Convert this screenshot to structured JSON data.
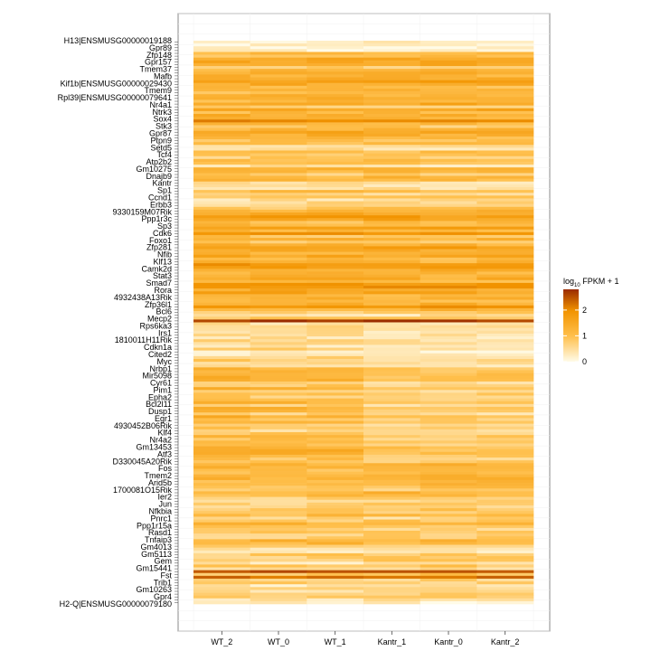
{
  "chart_data": {
    "type": "heatmap",
    "columns": [
      "WT_2",
      "WT_0",
      "WT_1",
      "Kantr_1",
      "Kantr_0",
      "Kantr_2"
    ],
    "legend": {
      "title_main": "log",
      "title_sub": "10",
      "title_rest": " FPKM + 1",
      "ticks": [
        0,
        1,
        2
      ],
      "range": [
        0,
        2.8
      ],
      "colors": [
        "#fffbe8",
        "#ffc04d",
        "#f29400",
        "#9a2a00"
      ]
    },
    "row_labels": [
      "H13|ENSMUSG00000019188",
      "Gpr89",
      "Zfp148",
      "Gpr157",
      "Tmem37",
      "Mafb",
      "Kif1b|ENSMUSG00000029430",
      "Tmem9",
      "Rpl39|ENSMUSG00000079641",
      "Nr4a1",
      "Ntrk3",
      "Sox4",
      "Stk3",
      "Gpr87",
      "Ptpn9",
      "Setd5",
      "Tcf4",
      "Atp2b2",
      "Gm10275",
      "Dnajb9",
      "Kantr",
      "Sp1",
      "Ccnd1",
      "Erbb3",
      "9330159M07Rik",
      "Ppp1r3c",
      "Sp3",
      "Cdk6",
      "Foxo1",
      "Zfp281",
      "Nfib",
      "Klf13",
      "Camk2d",
      "Stat3",
      "Smad7",
      "Rora",
      "4932438A13Rik",
      "Zfp36l1",
      "Bcl6",
      "Mecp2",
      "Rps6ka3",
      "Irs1",
      "1810011H11Rik",
      "Cdkn1a",
      "Cited2",
      "Myc",
      "Nrbp1",
      "Mir5098",
      "Cyr61",
      "Pim1",
      "Epha2",
      "Bcl2l11",
      "Dusp1",
      "Egr1",
      "4930452B06Rik",
      "Klf4",
      "Nr4a2",
      "Gm13453",
      "Atf3",
      "D330045A20Rik",
      "Fos",
      "Tmem2",
      "Arid5b",
      "1700081O15Rik",
      "Ier2",
      "Jun",
      "Nfkbia",
      "Pnrc1",
      "Ppp1r15a",
      "Rasd1",
      "Tnfaip3",
      "Gm4013",
      "Gm5113",
      "Gem",
      "Gm15441",
      "Fst",
      "Trib1",
      "Gm10263",
      "Gpr4",
      "H2-Q|ENSMUSG00000079180"
    ]
  }
}
